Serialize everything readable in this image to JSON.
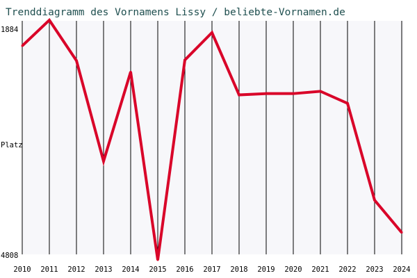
{
  "chart_data": {
    "type": "line",
    "title": "Trenddiagramm des Vornamens Lissy / beliebte-Vornamen.de",
    "xlabel": "",
    "ylabel": "Platz",
    "y_inverted": true,
    "ylim": [
      1884,
      4808
    ],
    "y_ticks": [
      "1884",
      "4808"
    ],
    "x": [
      "2010",
      "2011",
      "2012",
      "2013",
      "2014",
      "2015",
      "2016",
      "2017",
      "2018",
      "2019",
      "2020",
      "2021",
      "2022",
      "2023",
      "2024"
    ],
    "series": [
      {
        "values": [
          2197,
          1875,
          2382,
          3642,
          2523,
          4878,
          2374,
          2031,
          2811,
          2795,
          2795,
          2766,
          2917,
          4130,
          4535
        ],
        "color": "#d90429"
      }
    ],
    "grid": {
      "vertical": true,
      "horizontal": false
    },
    "colors": {
      "background": "#f7f7fa",
      "grid": "#000000",
      "title": "#1f4f4f"
    }
  }
}
